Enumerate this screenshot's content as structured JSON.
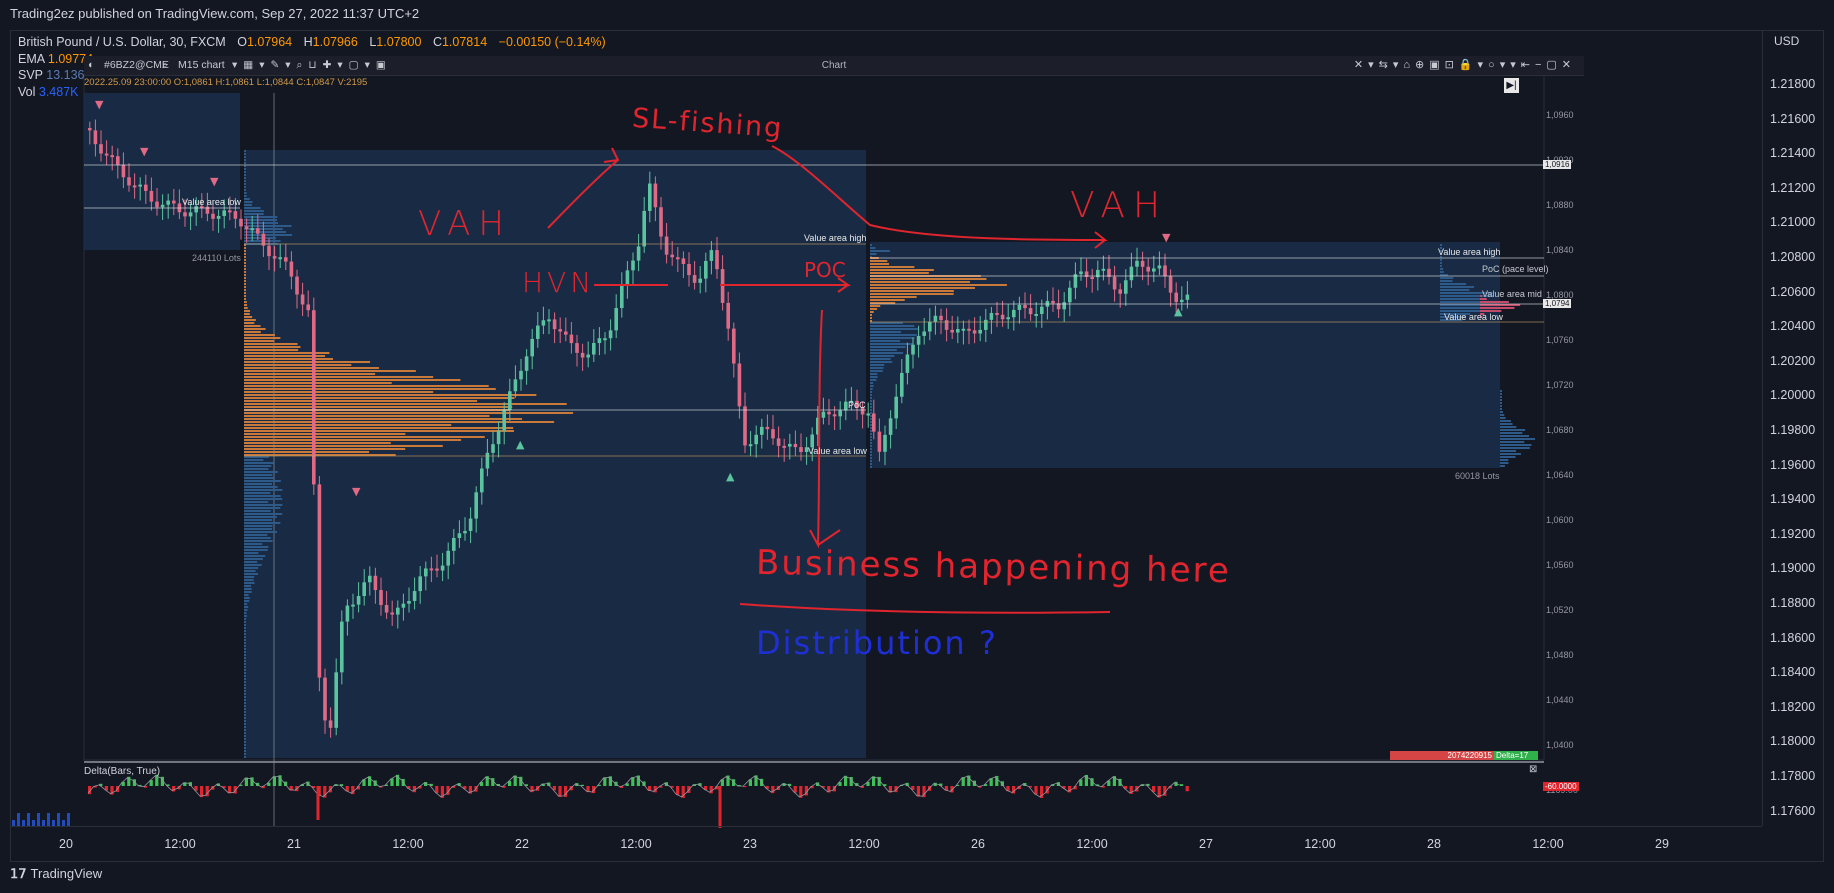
{
  "publisher_line": "Trading2ez published on TradingView.com, Sep 27, 2022 11:37 UTC+2",
  "symbol": {
    "title": "British Pound / U.S. Dollar, 30, FXCM",
    "open_label": "O",
    "open": "1.07964",
    "high_label": "H",
    "high": "1.07966",
    "low_label": "L",
    "low": "1.07800",
    "close_label": "C",
    "close": "1.07814",
    "change": "−0.00150 (−0.14%)"
  },
  "indicators": {
    "ema_label": "EMA",
    "ema_value": "1.09774",
    "svp_label": "SVP",
    "svp_value": "13.136",
    "vol_label": "Vol",
    "vol_value": "3.487K"
  },
  "inner_chart": {
    "symbol": "#6BZ2@CME",
    "interval": "M15 chart",
    "window_title": "Chart",
    "ohlc_line": "2022.25.09 23:00:00 O:1,0861 H:1,0861 L:1,0844 C:1,0847 V:2195",
    "inner_price_labels": [
      "1,0960",
      "1,0920",
      "1,0880",
      "1,0840",
      "1,0800",
      "1,0760",
      "1,0720",
      "1,0680",
      "1,0640",
      "1,0600",
      "1,0560",
      "1,0520",
      "1,0480",
      "1,0440",
      "1,0400",
      "1169.00"
    ],
    "price_tag_high": "1,0916",
    "price_tag_last": "1,0794",
    "counter_left": "2074220915",
    "counter_right": "Delta=17",
    "delta_tag": "-60.0000",
    "delta_title": "Delta(Bars, True)"
  },
  "profile_labels": {
    "value_area_low_1": "Value area low",
    "lots_1": "244110 Lots",
    "value_area_high_2": "Value area high",
    "poc_2": "PoC",
    "value_area_low_2": "Value area low",
    "value_area_high_3": "Value area high",
    "poc_3": "PoC (pace level)",
    "value_area_mid_3": "Value area mid",
    "value_area_low_3": "Value area low",
    "lots_3": "60018 Lots"
  },
  "annotations": {
    "sl_fishing": "SL-fishing",
    "vah_left": "VAH",
    "vah_right": "VAH",
    "hvn": "HVN",
    "poc": "POC",
    "business": "Business happening here",
    "distribution": "Distribution ?"
  },
  "price_axis": {
    "currency": "USD",
    "labels": [
      "1.21800",
      "1.21600",
      "1.21400",
      "1.21200",
      "1.21000",
      "1.20800",
      "1.20600",
      "1.20400",
      "1.20200",
      "1.20000",
      "1.19800",
      "1.19600",
      "1.19400",
      "1.19200",
      "1.19000",
      "1.18800",
      "1.18600",
      "1.18400",
      "1.18200",
      "1.18000",
      "1.17800",
      "1.17600"
    ]
  },
  "time_axis": {
    "labels": [
      "20",
      "12:00",
      "21",
      "12:00",
      "22",
      "12:00",
      "23",
      "12:00",
      "26",
      "12:00",
      "27",
      "12:00",
      "28",
      "12:00",
      "29"
    ]
  },
  "footer_brand": "TradingView",
  "colors": {
    "background": "#131722",
    "profile_orange": "#d07d3a",
    "profile_blue": "#2b4a6e",
    "bull": "#5cc3a0",
    "bear": "#e06a86",
    "annotation_red": "#e0252f",
    "annotation_blue": "#1f2fd6"
  }
}
